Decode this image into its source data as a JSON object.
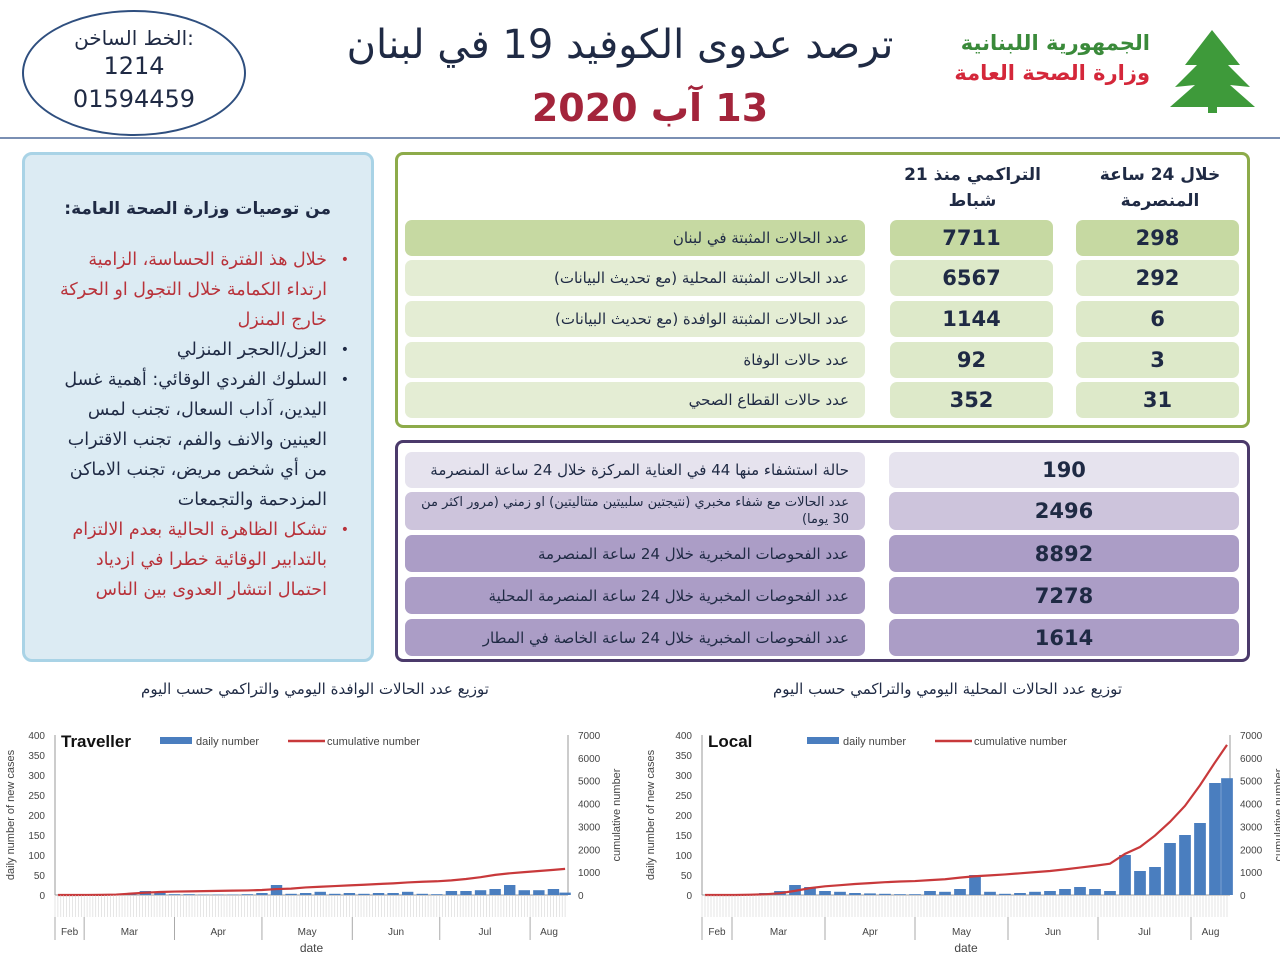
{
  "hotline": {
    "label": "الخط الساخن:",
    "number1": "1214",
    "number2": "01594459"
  },
  "header": {
    "title": "ترصد عدوى الكوفيد 19 في لبنان",
    "date": "13 آب 2020",
    "republic": "الجمهورية اللبنانية",
    "ministry": "وزارة الصحة العامة"
  },
  "recommendations": {
    "title": "من توصيات وزارة الصحة العامة:",
    "items": [
      {
        "text": "خلال هذ الفترة الحساسة، الزامية ارتداء الكمامة خلال التجول او الحركة خارج المنزل",
        "color": "red"
      },
      {
        "text": "العزل/الحجر المنزلي",
        "color": "dark"
      },
      {
        "text": "السلوك الفردي الوقائي: أهمية غسل اليدين، آداب السعال، تجنب لمس العينين والانف والفم، تجنب الاقتراب من أي شخص مريض، تجنب الاماكن المزدحمة والتجمعات",
        "color": "dark"
      },
      {
        "text": "تشكل الظاهرة الحالية بعدم الالتزام بالتدابير الوقائية خطرا في ازدياد احتمال انتشار العدوى بين الناس",
        "color": "red"
      }
    ]
  },
  "summary": {
    "col_24h": "خلال 24 ساعة المنصرمة",
    "col_cumulative": "التراكمي منذ 21 شباط",
    "rows": [
      {
        "label": "عدد الحالات المثبتة في لبنان",
        "cumulative": "7711",
        "last24h": "298"
      },
      {
        "label": "عدد الحالات المثبتة المحلية  (مع تحديث البيانات)",
        "cumulative": "6567",
        "last24h": "292"
      },
      {
        "label": "عدد الحالات المثبتة الوافدة (مع تحديث البيانات)",
        "cumulative": "1144",
        "last24h": "6"
      },
      {
        "label": "عدد حالات الوفاة",
        "cumulative": "92",
        "last24h": "3"
      },
      {
        "label": "عدد حالات القطاع الصحي",
        "cumulative": "352",
        "last24h": "31"
      }
    ]
  },
  "other": {
    "rows": [
      {
        "label": "حالة استشفاء منها 44 في العناية المركزة خلال 24 ساعة المنصرمة",
        "value": "190"
      },
      {
        "label": "عدد الحالات مع شفاء مخبري (نتيجتين سلبيتين متتاليتين) او زمني (مرور اكثر من 30 يوما)",
        "value": "2496"
      },
      {
        "label": "عدد الفحوصات المخبرية خلال 24 ساعة المنصرمة",
        "value": "8892"
      },
      {
        "label": "عدد الفحوصات المخبرية خلال 24 ساعة المنصرمة المحلية",
        "value": "7278"
      },
      {
        "label": "عدد الفحوصات المخبرية خلال 24 ساعة الخاصة في المطار",
        "value": "1614"
      }
    ]
  },
  "chart_titles": {
    "traveller": "توزيع عدد الحالات الوافدة اليومي والتراكمي حسب اليوم",
    "local": "توزيع عدد الحالات المحلية اليومي والتراكمي حسب اليوم"
  },
  "chart_data": [
    {
      "type": "bar+line",
      "title": "Traveller",
      "xlabel": "date",
      "ylabel": "daily number of new cases",
      "y2label": "cumulative number",
      "ylim": [
        0,
        400
      ],
      "y2lim": [
        0,
        7000
      ],
      "yticks": [
        0,
        50,
        100,
        150,
        200,
        250,
        300,
        350,
        400
      ],
      "y2ticks": [
        0,
        1000,
        2000,
        3000,
        4000,
        5000,
        6000,
        7000
      ],
      "months": [
        "Feb",
        "Mar",
        "Apr",
        "May",
        "Jun",
        "Jul",
        "Aug"
      ],
      "x": [
        "2020-02-21",
        "2020-02-26",
        "2020-03-02",
        "2020-03-07",
        "2020-03-12",
        "2020-03-17",
        "2020-03-22",
        "2020-03-27",
        "2020-04-01",
        "2020-04-06",
        "2020-04-11",
        "2020-04-16",
        "2020-04-21",
        "2020-04-26",
        "2020-05-01",
        "2020-05-06",
        "2020-05-11",
        "2020-05-16",
        "2020-05-21",
        "2020-05-26",
        "2020-05-31",
        "2020-06-05",
        "2020-06-10",
        "2020-06-15",
        "2020-06-20",
        "2020-06-25",
        "2020-06-30",
        "2020-07-05",
        "2020-07-10",
        "2020-07-15",
        "2020-07-20",
        "2020-07-25",
        "2020-07-30",
        "2020-08-04",
        "2020-08-09",
        "2020-08-13"
      ],
      "series": [
        {
          "name": "daily number",
          "kind": "bar",
          "color": "#4a7ebf",
          "values": [
            0,
            0,
            0,
            0,
            1,
            2,
            10,
            5,
            2,
            2,
            1,
            1,
            1,
            2,
            5,
            25,
            3,
            5,
            8,
            3,
            5,
            3,
            5,
            5,
            8,
            3,
            2,
            10,
            10,
            12,
            15,
            25,
            12,
            12,
            15,
            6
          ]
        },
        {
          "name": "cumulative number",
          "kind": "line",
          "axis": "right",
          "color": "#c8393b",
          "values": [
            1,
            1,
            2,
            5,
            20,
            60,
            100,
            130,
            150,
            160,
            170,
            180,
            190,
            200,
            220,
            260,
            280,
            330,
            360,
            390,
            420,
            450,
            480,
            510,
            550,
            580,
            600,
            640,
            700,
            780,
            880,
            950,
            1000,
            1050,
            1100,
            1144
          ]
        }
      ]
    },
    {
      "type": "bar+line",
      "title": "Local",
      "xlabel": "date",
      "ylabel": "daily number of new cases",
      "y2label": "cumulative number",
      "ylim": [
        0,
        400
      ],
      "y2lim": [
        0,
        7000
      ],
      "yticks": [
        0,
        50,
        100,
        150,
        200,
        250,
        300,
        350,
        400
      ],
      "y2ticks": [
        0,
        1000,
        2000,
        3000,
        4000,
        5000,
        6000,
        7000
      ],
      "months": [
        "Feb",
        "Mar",
        "Apr",
        "May",
        "Jun",
        "Jul",
        "Aug"
      ],
      "x": [
        "2020-02-21",
        "2020-02-26",
        "2020-03-02",
        "2020-03-07",
        "2020-03-12",
        "2020-03-17",
        "2020-03-22",
        "2020-03-27",
        "2020-04-01",
        "2020-04-06",
        "2020-04-11",
        "2020-04-16",
        "2020-04-21",
        "2020-04-26",
        "2020-05-01",
        "2020-05-06",
        "2020-05-11",
        "2020-05-16",
        "2020-05-21",
        "2020-05-26",
        "2020-05-31",
        "2020-06-05",
        "2020-06-10",
        "2020-06-15",
        "2020-06-20",
        "2020-06-25",
        "2020-06-30",
        "2020-07-05",
        "2020-07-10",
        "2020-07-15",
        "2020-07-20",
        "2020-07-25",
        "2020-07-30",
        "2020-08-04",
        "2020-08-09",
        "2020-08-13"
      ],
      "series": [
        {
          "name": "daily number",
          "kind": "bar",
          "color": "#4a7ebf",
          "values": [
            0,
            0,
            1,
            2,
            5,
            10,
            25,
            20,
            10,
            8,
            5,
            4,
            3,
            2,
            2,
            10,
            8,
            15,
            50,
            8,
            3,
            5,
            8,
            10,
            15,
            20,
            15,
            10,
            100,
            60,
            70,
            130,
            150,
            180,
            280,
            292
          ]
        },
        {
          "name": "cumulative number",
          "kind": "line",
          "axis": "right",
          "color": "#c8393b",
          "values": [
            0,
            0,
            0,
            10,
            30,
            80,
            180,
            300,
            380,
            430,
            480,
            520,
            560,
            590,
            610,
            650,
            690,
            760,
            820,
            860,
            900,
            950,
            1000,
            1050,
            1120,
            1200,
            1280,
            1370,
            1800,
            2100,
            2600,
            3200,
            3900,
            4800,
            5800,
            6567
          ]
        }
      ]
    }
  ]
}
